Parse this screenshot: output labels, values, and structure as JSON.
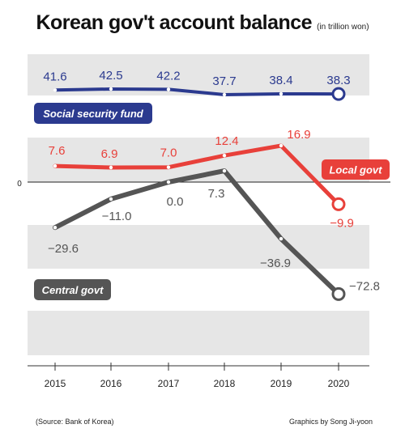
{
  "title": "Korean gov't account balance",
  "subtitle": "(in trillion won)",
  "source": "(Source: Bank of Korea)",
  "credit": "Graphics by Song Ji-yoon",
  "chart_data": {
    "type": "line",
    "x": [
      "2015",
      "2016",
      "2017",
      "2018",
      "2019",
      "2020"
    ],
    "zero_label": "0",
    "series": [
      {
        "name": "Social security fund",
        "color": "#2b3a8f",
        "values": [
          41.6,
          42.5,
          42.2,
          37.7,
          38.4,
          38.3
        ],
        "labels": [
          "41.6",
          "42.5",
          "42.2",
          "37.7",
          "38.4",
          "38.3"
        ]
      },
      {
        "name": "Local govt",
        "color": "#e8403a",
        "values": [
          7.6,
          6.9,
          7.0,
          12.4,
          16.9,
          -9.9
        ],
        "labels": [
          "7.6",
          "6.9",
          "7.0",
          "12.4",
          "16.9",
          "−9.9"
        ]
      },
      {
        "name": "Central govt",
        "color": "#555555",
        "values": [
          -29.6,
          -11.0,
          0.0,
          7.3,
          -36.9,
          -72.8
        ],
        "labels": [
          "−29.6",
          "−11.0",
          "0.0",
          "7.3",
          "−36.9",
          "−72.8"
        ]
      }
    ],
    "legend": "labels placed next to each line",
    "grid": "alternating horizontal bands"
  }
}
